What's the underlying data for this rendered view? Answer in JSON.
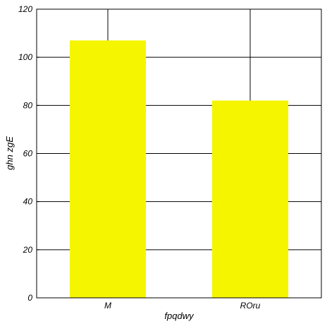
{
  "chart_data": {
    "type": "bar",
    "categories": [
      "M",
      "ROru"
    ],
    "values": [
      107,
      82
    ],
    "xlabel": "fpqdwy",
    "ylabel": "ghn zgE",
    "ylim": [
      0,
      120
    ],
    "yticks": [
      0,
      20,
      40,
      60,
      80,
      100,
      120
    ],
    "grid": true,
    "bar_color": "#f5f500",
    "grid_color": "#000000",
    "axis_color": "#000000"
  }
}
